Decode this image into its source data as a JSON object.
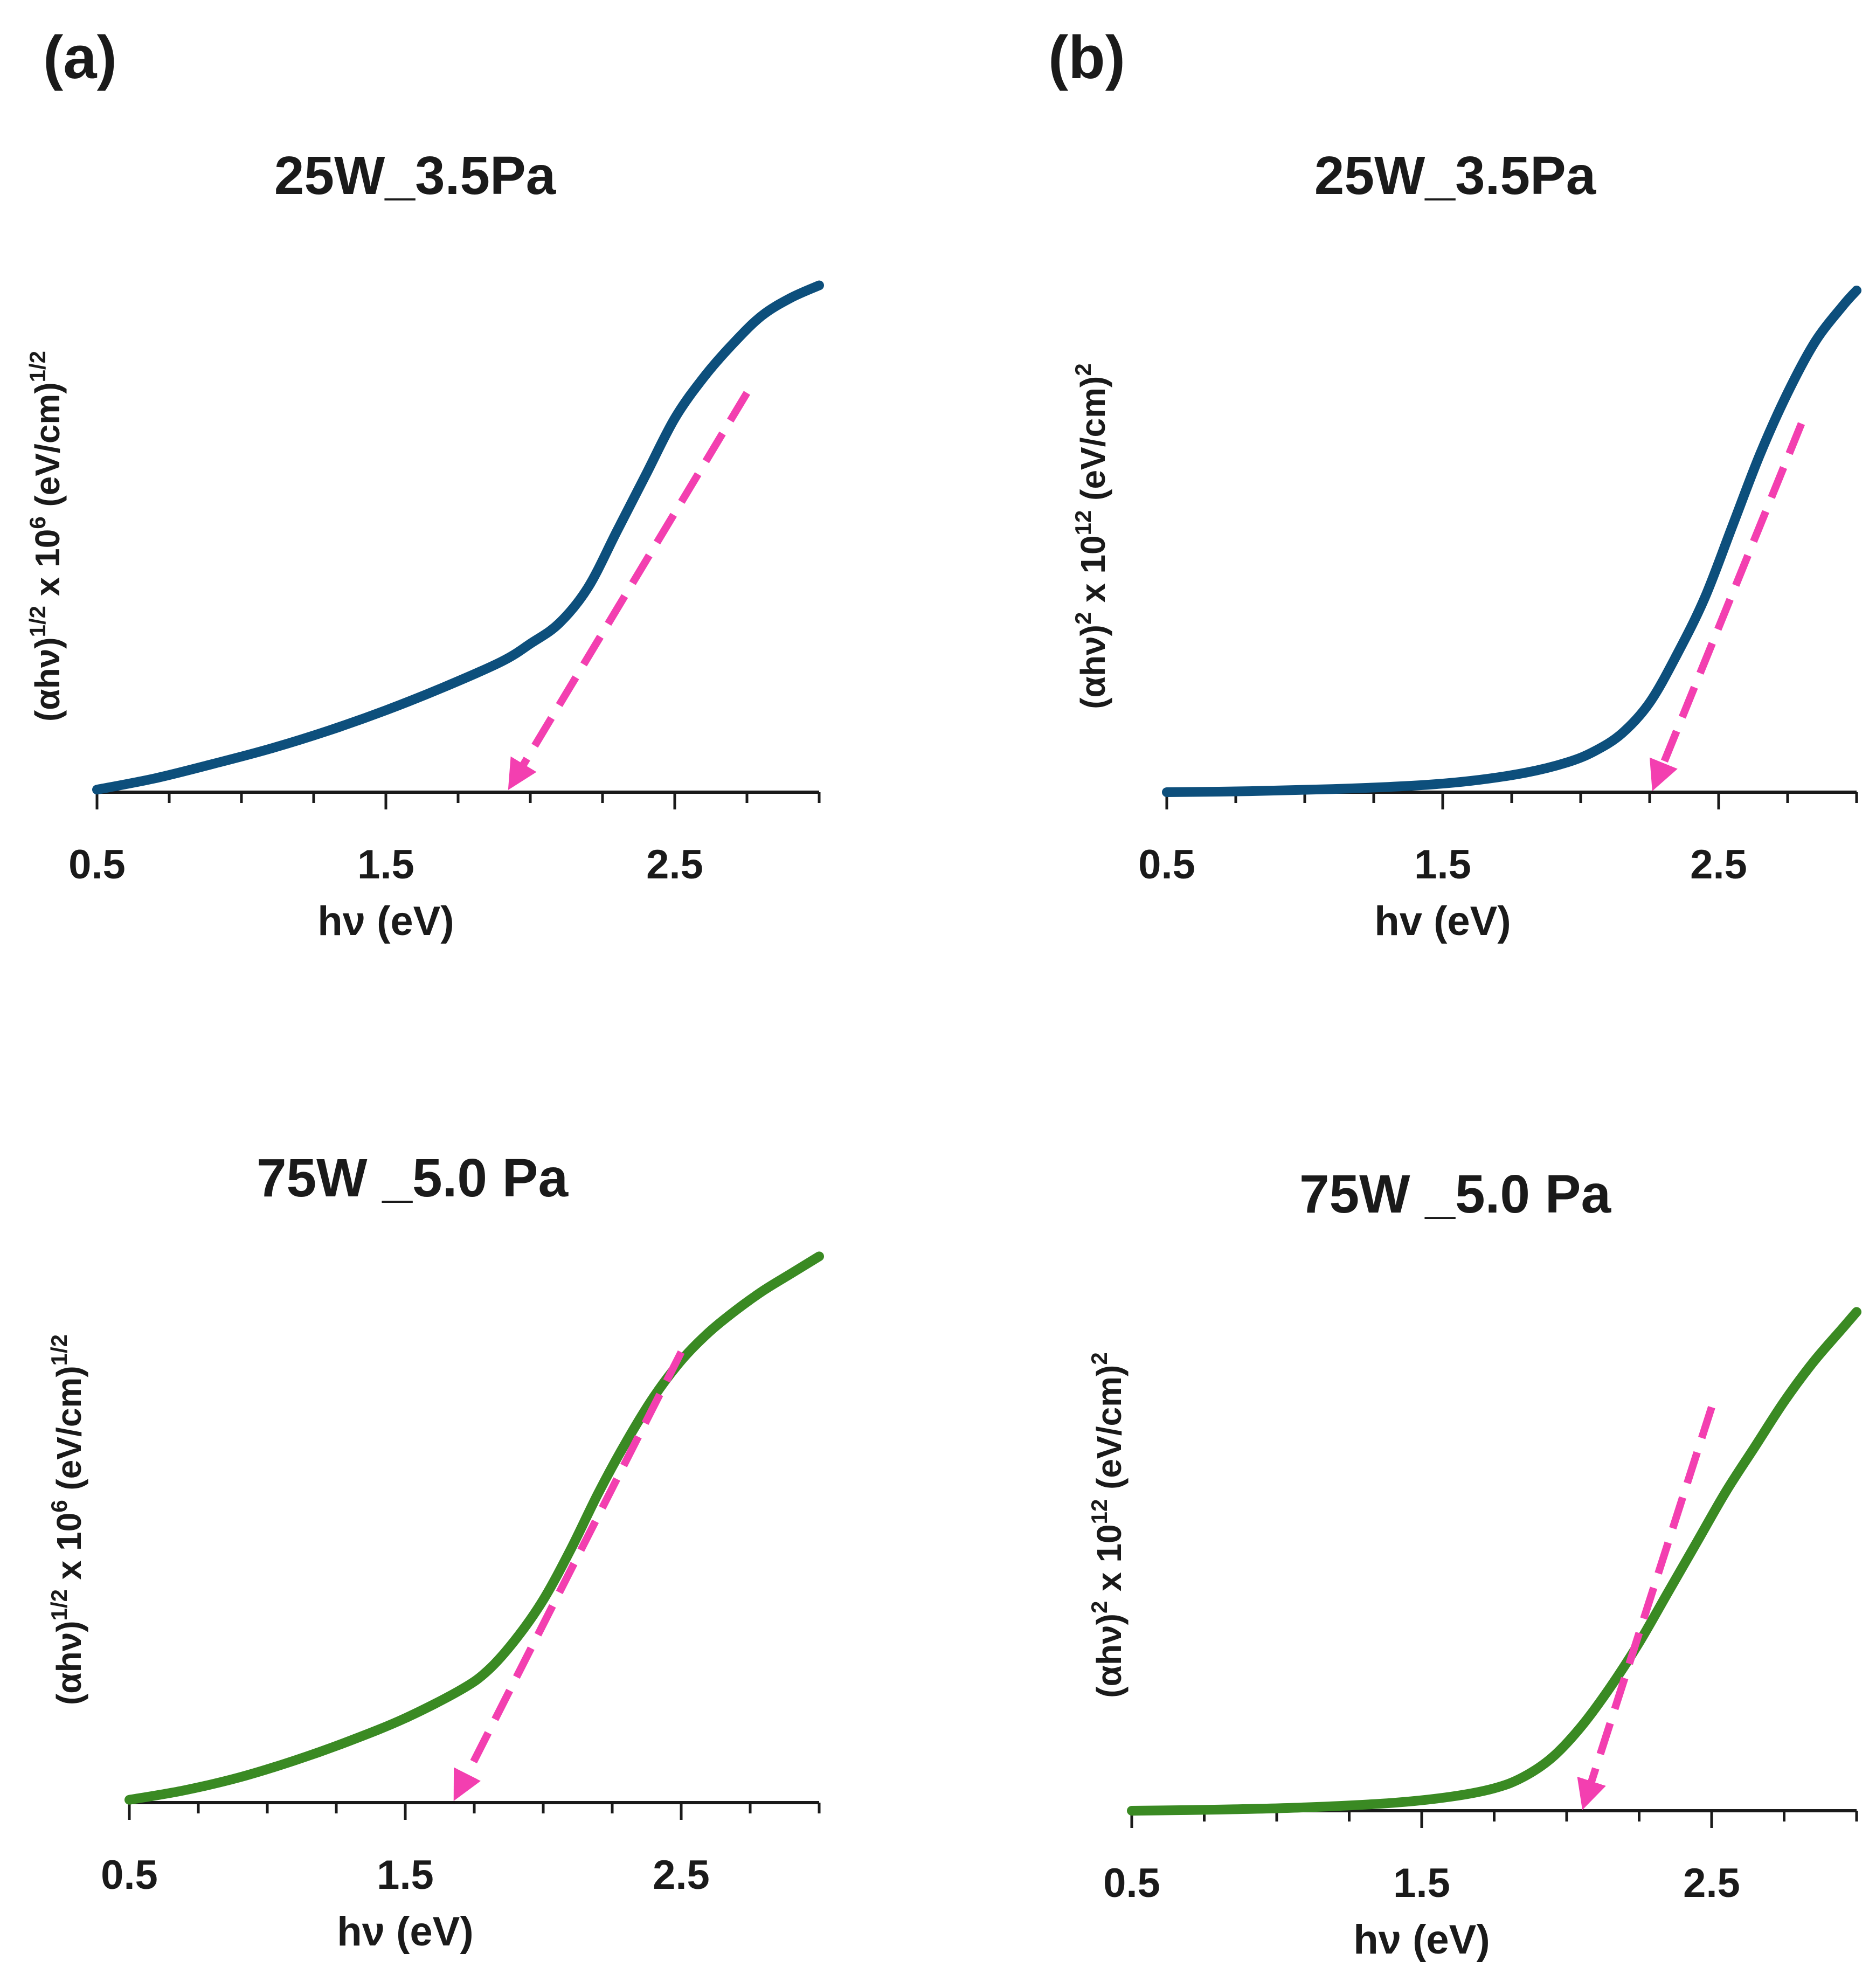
{
  "figure": {
    "panel_labels": [
      "(a)",
      "(b)"
    ],
    "colors": {
      "series_25W": "#0d4f7c",
      "series_75W": "#3a8a23",
      "fit": "#f33fb0",
      "axis": "#1a1a1a"
    }
  },
  "chart_data": [
    {
      "id": "a_top",
      "type": "line",
      "title": "25W_3.5Pa",
      "xlabel": "hν (eV)",
      "ylabel": {
        "base": "(αhν)",
        "exp1": "1/2",
        "mid": " x 10",
        "exp2": "6",
        "unit": " (eV/cm)",
        "exp3": "1/2"
      },
      "xlim": [
        0.5,
        3.0
      ],
      "ylim": [
        0,
        1.0
      ],
      "xticks": [
        0.5,
        1.5,
        2.5
      ],
      "xtick_labels": [
        "0.5",
        "1.5",
        "2.5"
      ],
      "series": [
        {
          "name": "25W_3.5Pa",
          "color": "#0d4f7c",
          "x": [
            0.5,
            0.7,
            0.9,
            1.1,
            1.3,
            1.5,
            1.7,
            1.9,
            2.0,
            2.1,
            2.2,
            2.3,
            2.4,
            2.5,
            2.6,
            2.7,
            2.8,
            2.9,
            3.0
          ],
          "y": [
            0.005,
            0.027,
            0.055,
            0.085,
            0.12,
            0.16,
            0.205,
            0.255,
            0.29,
            0.33,
            0.4,
            0.51,
            0.62,
            0.73,
            0.81,
            0.875,
            0.93,
            0.965,
            0.99
          ]
        }
      ],
      "fit": {
        "x": [
          2.75,
          1.95
        ],
        "y": [
          0.78,
          0.0
        ],
        "intercept_eV": 1.95
      }
    },
    {
      "id": "b_top",
      "type": "line",
      "title": "25W_3.5Pa",
      "xlabel": "hv (eV)",
      "ylabel": {
        "base": "(αhν)",
        "exp1": "2",
        "mid": " x 10",
        "exp2": "12",
        "unit": " (eV/cm)",
        "exp3": "2"
      },
      "xlim": [
        0.5,
        3.0
      ],
      "ylim": [
        0,
        1.0
      ],
      "xticks": [
        0.5,
        1.5,
        2.5
      ],
      "xtick_labels": [
        "0.5",
        "1.5",
        "2.5"
      ],
      "series": [
        {
          "name": "25W_3.5Pa",
          "color": "#0d4f7c",
          "x": [
            0.5,
            0.8,
            1.1,
            1.4,
            1.6,
            1.8,
            1.95,
            2.05,
            2.15,
            2.25,
            2.35,
            2.45,
            2.55,
            2.65,
            2.75,
            2.85,
            2.95,
            3.0
          ],
          "y": [
            0.0,
            0.002,
            0.006,
            0.013,
            0.022,
            0.038,
            0.058,
            0.08,
            0.115,
            0.175,
            0.27,
            0.38,
            0.52,
            0.66,
            0.78,
            0.88,
            0.95,
            0.98
          ]
        }
      ],
      "fit": {
        "x": [
          2.8,
          2.28
        ],
        "y": [
          0.72,
          0.0
        ],
        "intercept_eV": 2.28
      }
    },
    {
      "id": "a_bottom",
      "type": "line",
      "title": "75W _5.0 Pa",
      "xlabel": "hν (eV)",
      "ylabel": {
        "base": "(αhν)",
        "exp1": "1/2",
        "mid": " x 10",
        "exp2": "6",
        "unit": " (eV/cm)",
        "exp3": "1/2"
      },
      "xlim": [
        0.5,
        3.0
      ],
      "ylim": [
        0,
        1.0
      ],
      "xticks": [
        0.5,
        1.5,
        2.5
      ],
      "xtick_labels": [
        "0.5",
        "1.5",
        "2.5"
      ],
      "series": [
        {
          "name": "75W _5.0 Pa",
          "color": "#3a8a23",
          "x": [
            0.5,
            0.7,
            0.9,
            1.1,
            1.3,
            1.5,
            1.7,
            1.8,
            1.9,
            2.0,
            2.1,
            2.2,
            2.3,
            2.4,
            2.5,
            2.6,
            2.7,
            2.8,
            2.9,
            3.0
          ],
          "y": [
            0.005,
            0.022,
            0.045,
            0.075,
            0.11,
            0.15,
            0.2,
            0.235,
            0.29,
            0.36,
            0.45,
            0.55,
            0.64,
            0.72,
            0.785,
            0.835,
            0.875,
            0.91,
            0.94,
            0.97
          ]
        }
      ],
      "fit": {
        "x": [
          2.5,
          1.7
        ],
        "y": [
          0.8,
          0.0
        ],
        "intercept_eV": 1.7
      }
    },
    {
      "id": "b_bottom",
      "type": "line",
      "title": "75W _5.0 Pa",
      "xlabel": "hν (eV)",
      "ylabel": {
        "base": "(αhν)",
        "exp1": "2",
        "mid": " x 10",
        "exp2": "12",
        "unit": " (eV/cm)",
        "exp3": "2"
      },
      "xlim": [
        0.5,
        3.0
      ],
      "ylim": [
        0,
        1.0
      ],
      "xticks": [
        0.5,
        1.5,
        2.5
      ],
      "xtick_labels": [
        "0.5",
        "1.5",
        "2.5"
      ],
      "series": [
        {
          "name": "75W _5.0 Pa",
          "color": "#3a8a23",
          "x": [
            0.5,
            0.8,
            1.1,
            1.4,
            1.6,
            1.75,
            1.85,
            1.95,
            2.05,
            2.15,
            2.25,
            2.35,
            2.45,
            2.55,
            2.65,
            2.75,
            2.85,
            2.95,
            3.0
          ],
          "y": [
            0.0,
            0.002,
            0.006,
            0.014,
            0.025,
            0.04,
            0.06,
            0.095,
            0.15,
            0.22,
            0.3,
            0.39,
            0.48,
            0.57,
            0.65,
            0.73,
            0.8,
            0.86,
            0.89
          ]
        }
      ],
      "fit": {
        "x": [
          2.5,
          2.07
        ],
        "y": [
          0.72,
          0.0
        ],
        "intercept_eV": 2.07
      }
    }
  ]
}
